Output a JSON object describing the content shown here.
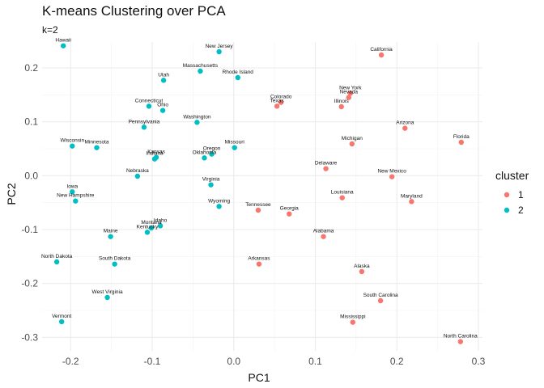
{
  "chart_data": {
    "type": "scatter",
    "title": "K-means Clustering over PCA",
    "subtitle": "k=2",
    "xlabel": "PC1",
    "ylabel": "PC2",
    "xlim": [
      -0.235,
      0.305
    ],
    "ylim": [
      -0.325,
      0.248
    ],
    "x_ticks": [
      -0.2,
      -0.1,
      0.0,
      0.1,
      0.2,
      0.3
    ],
    "x_tick_labels": [
      "-0.2",
      "-0.1",
      "0.0",
      "0.1",
      "0.2",
      "0.3"
    ],
    "y_ticks": [
      -0.3,
      -0.2,
      -0.1,
      0.0,
      0.1,
      0.2
    ],
    "y_tick_labels": [
      "-0.3",
      "-0.2",
      "-0.1",
      "0.0",
      "0.1",
      "0.2"
    ],
    "grid": true,
    "legend": {
      "title": "cluster",
      "position": "right",
      "entries": [
        {
          "label": "1",
          "color": "#F8766D"
        },
        {
          "label": "2",
          "color": "#00BFC4"
        }
      ]
    },
    "points": [
      {
        "label": "Hawaii",
        "x": -0.209,
        "y": 0.241,
        "cluster": 2
      },
      {
        "label": "New Jersey",
        "x": -0.018,
        "y": 0.23,
        "cluster": 2
      },
      {
        "label": "California",
        "x": 0.181,
        "y": 0.224,
        "cluster": 1
      },
      {
        "label": "Massachusetts",
        "x": -0.041,
        "y": 0.194,
        "cluster": 2
      },
      {
        "label": "Rhode Island",
        "x": 0.005,
        "y": 0.182,
        "cluster": 2
      },
      {
        "label": "Utah",
        "x": -0.086,
        "y": 0.177,
        "cluster": 2
      },
      {
        "label": "New York",
        "x": 0.143,
        "y": 0.153,
        "cluster": 1
      },
      {
        "label": "Nevada",
        "x": 0.141,
        "y": 0.145,
        "cluster": 1
      },
      {
        "label": "Colorado",
        "x": 0.058,
        "y": 0.136,
        "cluster": 1
      },
      {
        "label": "Texas",
        "x": 0.053,
        "y": 0.129,
        "cluster": 1
      },
      {
        "label": "Illinois",
        "x": 0.132,
        "y": 0.128,
        "cluster": 1
      },
      {
        "label": "Connecticut",
        "x": -0.104,
        "y": 0.129,
        "cluster": 2
      },
      {
        "label": "Ohio",
        "x": -0.087,
        "y": 0.121,
        "cluster": 2
      },
      {
        "label": "Washington",
        "x": -0.045,
        "y": 0.099,
        "cluster": 2
      },
      {
        "label": "Pennsylvania",
        "x": -0.11,
        "y": 0.09,
        "cluster": 2
      },
      {
        "label": "Arizona",
        "x": 0.21,
        "y": 0.088,
        "cluster": 1
      },
      {
        "label": "Florida",
        "x": 0.279,
        "y": 0.062,
        "cluster": 1
      },
      {
        "label": "Michigan",
        "x": 0.145,
        "y": 0.059,
        "cluster": 1
      },
      {
        "label": "Wisconsin",
        "x": -0.198,
        "y": 0.055,
        "cluster": 2
      },
      {
        "label": "Minnesota",
        "x": -0.168,
        "y": 0.052,
        "cluster": 2
      },
      {
        "label": "Missouri",
        "x": 0.001,
        "y": 0.052,
        "cluster": 2
      },
      {
        "label": "Oregon",
        "x": -0.027,
        "y": 0.04,
        "cluster": 2
      },
      {
        "label": "Oklahoma",
        "x": -0.036,
        "y": 0.033,
        "cluster": 2
      },
      {
        "label": "Kansas",
        "x": -0.095,
        "y": 0.034,
        "cluster": 2
      },
      {
        "label": "Indiana",
        "x": -0.097,
        "y": 0.031,
        "cluster": 2
      },
      {
        "label": "Delaware",
        "x": 0.113,
        "y": 0.013,
        "cluster": 1
      },
      {
        "label": "Nebraska",
        "x": -0.118,
        "y": -0.001,
        "cluster": 2
      },
      {
        "label": "New Mexico",
        "x": 0.194,
        "y": -0.002,
        "cluster": 1
      },
      {
        "label": "Virginia",
        "x": -0.028,
        "y": -0.017,
        "cluster": 2
      },
      {
        "label": "Iowa",
        "x": -0.198,
        "y": -0.03,
        "cluster": 2
      },
      {
        "label": "Louisiana",
        "x": 0.133,
        "y": -0.041,
        "cluster": 1
      },
      {
        "label": "New Hampshire",
        "x": -0.194,
        "y": -0.047,
        "cluster": 2
      },
      {
        "label": "Maryland",
        "x": 0.218,
        "y": -0.048,
        "cluster": 1
      },
      {
        "label": "Wyoming",
        "x": -0.018,
        "y": -0.057,
        "cluster": 2
      },
      {
        "label": "Tennessee",
        "x": 0.03,
        "y": -0.064,
        "cluster": 1
      },
      {
        "label": "Georgia",
        "x": 0.068,
        "y": -0.071,
        "cluster": 1
      },
      {
        "label": "Idaho",
        "x": -0.09,
        "y": -0.093,
        "cluster": 2
      },
      {
        "label": "Montana",
        "x": -0.101,
        "y": -0.097,
        "cluster": 2
      },
      {
        "label": "Kentucky",
        "x": -0.106,
        "y": -0.105,
        "cluster": 2
      },
      {
        "label": "Maine",
        "x": -0.151,
        "y": -0.113,
        "cluster": 2
      },
      {
        "label": "Alabama",
        "x": 0.11,
        "y": -0.113,
        "cluster": 1
      },
      {
        "label": "North Dakota",
        "x": -0.217,
        "y": -0.16,
        "cluster": 2
      },
      {
        "label": "South Dakota",
        "x": -0.146,
        "y": -0.164,
        "cluster": 2
      },
      {
        "label": "Arkansas",
        "x": 0.031,
        "y": -0.164,
        "cluster": 1
      },
      {
        "label": "Alaska",
        "x": 0.157,
        "y": -0.178,
        "cluster": 1
      },
      {
        "label": "West Virginia",
        "x": -0.155,
        "y": -0.226,
        "cluster": 2
      },
      {
        "label": "South Carolina",
        "x": 0.18,
        "y": -0.232,
        "cluster": 1
      },
      {
        "label": "Vermont",
        "x": -0.211,
        "y": -0.271,
        "cluster": 2
      },
      {
        "label": "Mississippi",
        "x": 0.146,
        "y": -0.272,
        "cluster": 1
      },
      {
        "label": "North Carolina",
        "x": 0.278,
        "y": -0.308,
        "cluster": 1
      }
    ]
  }
}
